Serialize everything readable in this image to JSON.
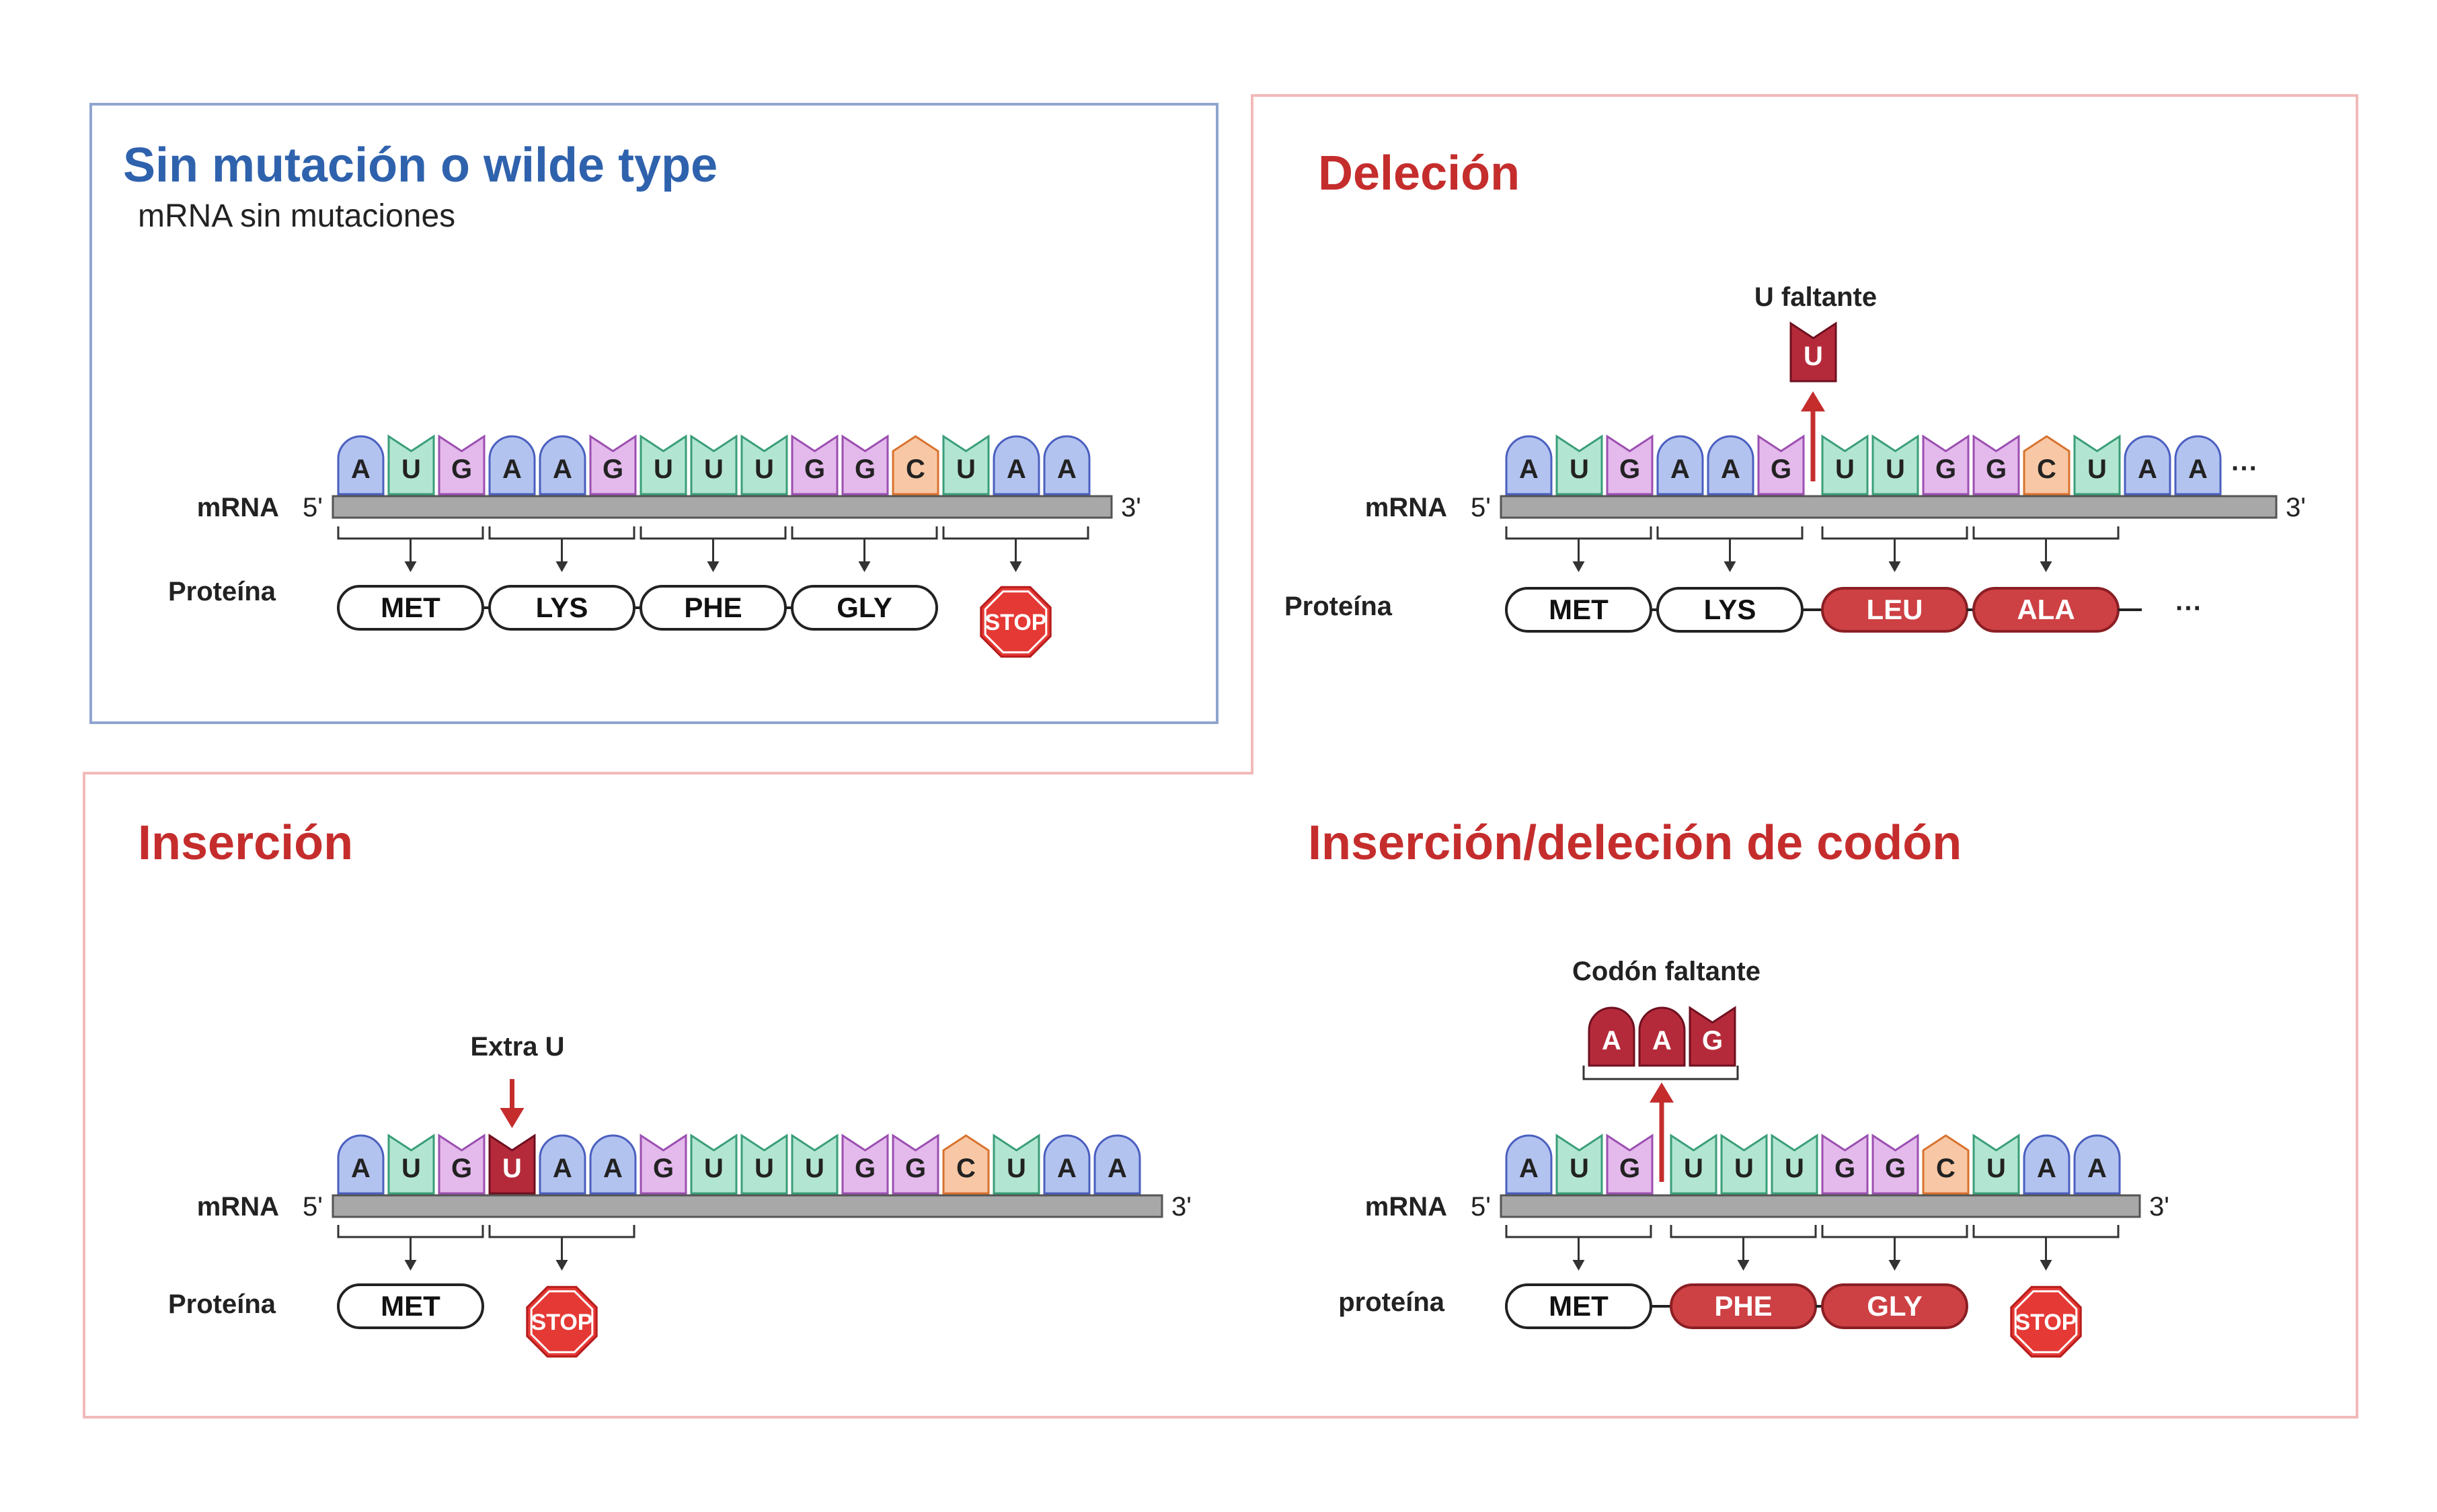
{
  "colors": {
    "A": {
      "fill": "#b3c3ef",
      "stroke": "#4a5fbf",
      "shape": "round"
    },
    "U": {
      "fill": "#b3e6d2",
      "stroke": "#3a9e78",
      "shape": "notch"
    },
    "G": {
      "fill": "#e4b9ec",
      "stroke": "#9b4fb0",
      "shape": "notch"
    },
    "C": {
      "fill": "#f8c8a6",
      "stroke": "#d9722e",
      "shape": "point"
    },
    "mut": {
      "fill": "#b52a3a",
      "stroke": "#6e1020"
    },
    "protein_mut": "#cd4044",
    "stop": "#e53935",
    "panel_blue": "#8fa5cf",
    "panel_red": "#f2b9b9",
    "title_blue": "#2f62ad",
    "title_red": "#c52d2d"
  },
  "labels": {
    "mrna": "mRNA",
    "protein": "Proteína",
    "protein_lower": "proteína",
    "five": "5'",
    "three": "3'",
    "stop": "STOP",
    "ellipsis": "···"
  },
  "panels": {
    "wildtype": {
      "title": "Sin mutación o wilde type",
      "subtitle": "mRNA sin mutaciones",
      "sequence": [
        "A",
        "U",
        "G",
        "A",
        "A",
        "G",
        "U",
        "U",
        "U",
        "G",
        "G",
        "C",
        "U",
        "A",
        "A"
      ],
      "proteins": [
        "MET",
        "LYS",
        "PHE",
        "GLY"
      ],
      "end": "STOP"
    },
    "deletion": {
      "title": "Deleción",
      "annotation": "U faltante",
      "missing": "U",
      "sequence": [
        "A",
        "U",
        "G",
        "A",
        "A",
        "G",
        "U",
        "U",
        "G",
        "G",
        "C",
        "U",
        "A",
        "A"
      ],
      "proteins": [
        "MET",
        "LYS",
        "LEU",
        "ALA"
      ],
      "mutated_proteins": [
        "LEU",
        "ALA"
      ],
      "end": "···"
    },
    "insertion": {
      "title": "Inserción",
      "annotation": "Extra U",
      "inserted": "U",
      "sequence": [
        "A",
        "U",
        "G",
        "U",
        "A",
        "A",
        "G",
        "U",
        "U",
        "U",
        "G",
        "G",
        "C",
        "U",
        "A",
        "A"
      ],
      "proteins": [
        "MET"
      ],
      "end": "STOP"
    },
    "codon": {
      "title": "Inserción/deleción de codón",
      "annotation": "Codón faltante",
      "missing_codon": [
        "A",
        "A",
        "G"
      ],
      "sequence": [
        "A",
        "U",
        "G",
        "U",
        "U",
        "U",
        "G",
        "G",
        "C",
        "U",
        "A",
        "A"
      ],
      "proteins": [
        "MET",
        "PHE",
        "GLY"
      ],
      "mutated_proteins": [
        "PHE",
        "GLY"
      ],
      "end": "STOP"
    }
  }
}
